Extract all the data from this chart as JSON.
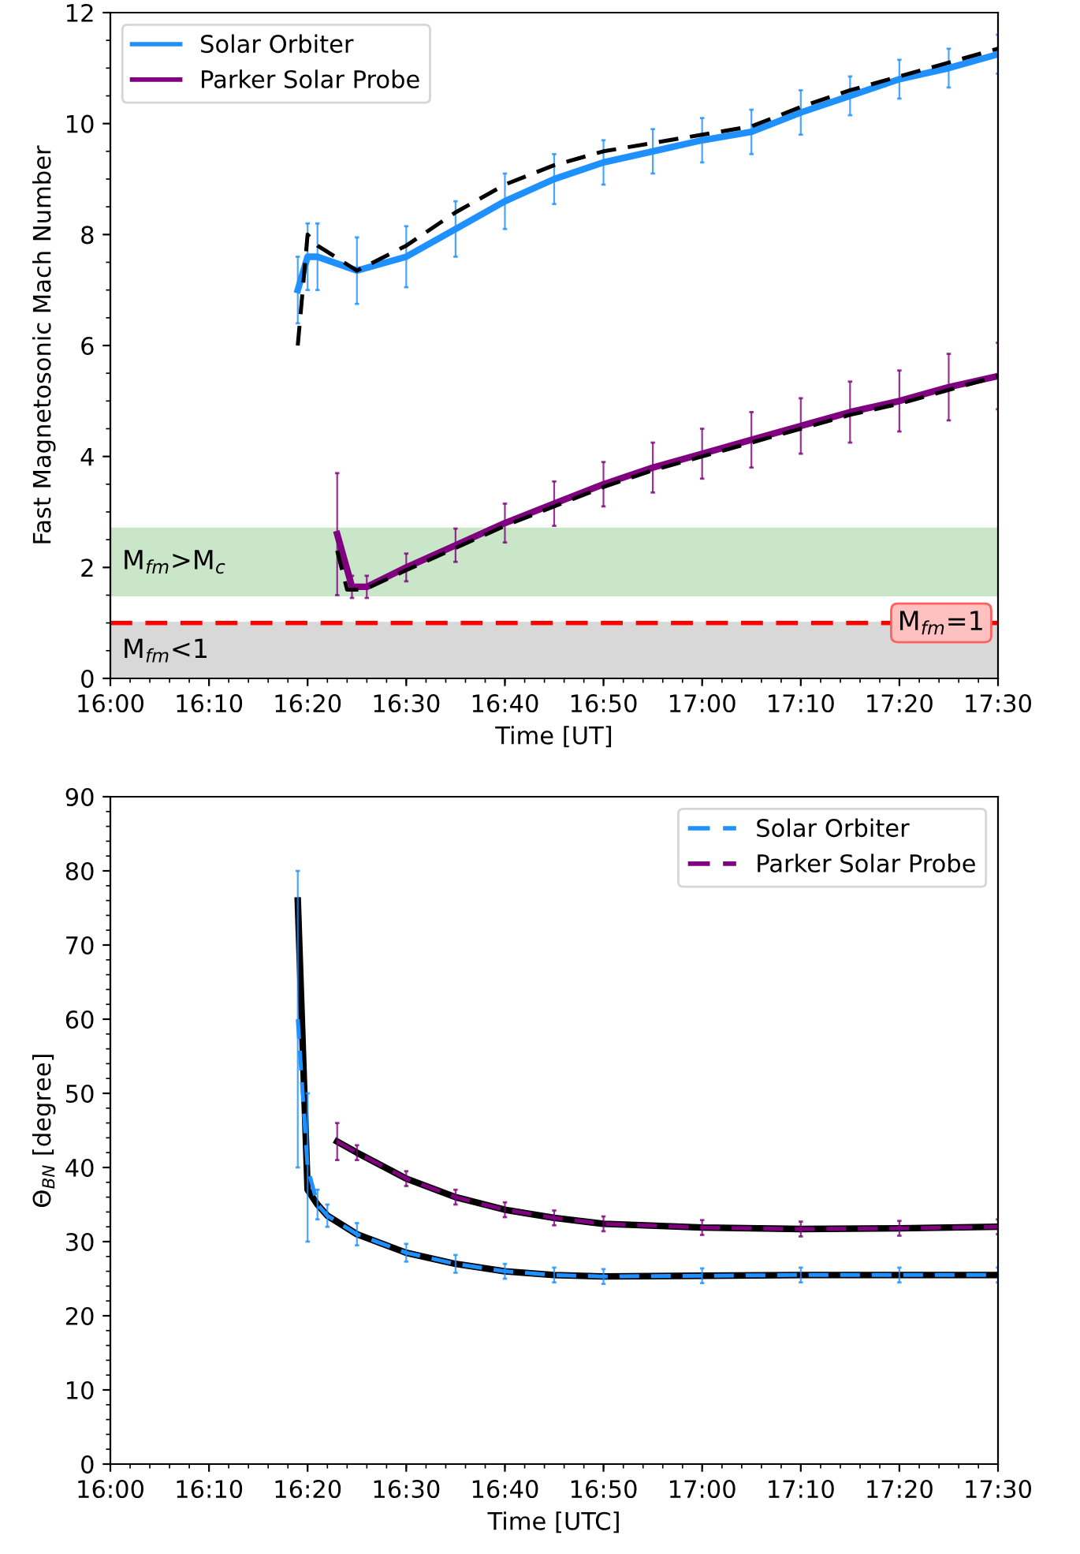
{
  "chart_data": [
    {
      "type": "line",
      "xlabel": "Time [UT]",
      "ylabel": "Fast Magnetosonic Mach Number",
      "xlim": [
        16.0,
        17.5
      ],
      "ylim": [
        0,
        12
      ],
      "xticks": [
        {
          "value": 16.0,
          "label": "16:00"
        },
        {
          "value": 16.1667,
          "label": "16:10"
        },
        {
          "value": 16.3333,
          "label": "16:20"
        },
        {
          "value": 16.5,
          "label": "16:30"
        },
        {
          "value": 16.6667,
          "label": "16:40"
        },
        {
          "value": 16.8333,
          "label": "16:50"
        },
        {
          "value": 17.0,
          "label": "17:00"
        },
        {
          "value": 17.1667,
          "label": "17:10"
        },
        {
          "value": 17.3333,
          "label": "17:20"
        },
        {
          "value": 17.5,
          "label": "17:30"
        }
      ],
      "yticks": [
        0,
        2,
        4,
        6,
        8,
        10,
        12
      ],
      "grid": false,
      "legend": "top left",
      "marker": "none",
      "series": [
        {
          "name": "Solar Orbiter",
          "color": "#1e90ff",
          "line_style": "solid",
          "x": [
            16.3167,
            16.3333,
            16.35,
            16.4167,
            16.5,
            16.5833,
            16.6667,
            16.75,
            16.8333,
            16.9167,
            17.0,
            17.0833,
            17.1667,
            17.25,
            17.3333,
            17.4167,
            17.5
          ],
          "values": [
            7.0,
            7.6,
            7.6,
            7.35,
            7.6,
            8.1,
            8.6,
            9.0,
            9.3,
            9.5,
            9.7,
            9.85,
            10.2,
            10.5,
            10.8,
            11.0,
            11.25
          ],
          "errors": [
            0.6,
            0.6,
            0.6,
            0.6,
            0.55,
            0.5,
            0.5,
            0.45,
            0.4,
            0.4,
            0.4,
            0.4,
            0.4,
            0.35,
            0.35,
            0.35,
            0.35
          ]
        },
        {
          "color": "#000000",
          "line_style": "dashed",
          "x": [
            16.3167,
            16.3333,
            16.35,
            16.4167,
            16.5,
            16.5833,
            16.6667,
            16.75,
            16.8333,
            16.9167,
            17.0,
            17.0833,
            17.1667,
            17.25,
            17.3333,
            17.4167,
            17.5
          ],
          "values": [
            6.0,
            8.0,
            7.8,
            7.35,
            7.8,
            8.4,
            8.9,
            9.25,
            9.5,
            9.65,
            9.8,
            9.95,
            10.3,
            10.6,
            10.85,
            11.1,
            11.35
          ]
        },
        {
          "name": "Parker Solar Probe",
          "color": "#800080",
          "line_style": "solid",
          "x": [
            16.3833,
            16.4083,
            16.4333,
            16.5,
            16.5833,
            16.6667,
            16.75,
            16.8333,
            16.9167,
            17.0,
            17.0833,
            17.1667,
            17.25,
            17.3333,
            17.4167,
            17.5
          ],
          "values": [
            2.6,
            1.65,
            1.65,
            2.0,
            2.4,
            2.8,
            3.15,
            3.5,
            3.8,
            4.05,
            4.3,
            4.55,
            4.8,
            5.0,
            5.25,
            5.45
          ],
          "errors": [
            1.1,
            0.2,
            0.2,
            0.25,
            0.3,
            0.35,
            0.4,
            0.4,
            0.45,
            0.45,
            0.5,
            0.5,
            0.55,
            0.55,
            0.6,
            0.6
          ]
        },
        {
          "color": "#000000",
          "line_style": "dashed",
          "x": [
            16.3833,
            16.4,
            16.4167,
            16.4333,
            16.5,
            16.5833,
            16.6667,
            16.75,
            16.8333,
            16.9167,
            17.0,
            17.0833,
            17.1667,
            17.25,
            17.3333,
            17.4167,
            17.5
          ],
          "values": [
            2.3,
            1.6,
            1.6,
            1.62,
            1.95,
            2.35,
            2.75,
            3.1,
            3.45,
            3.75,
            4.0,
            4.25,
            4.5,
            4.75,
            4.95,
            5.2,
            5.45
          ]
        }
      ],
      "bands": [
        {
          "axis": "y",
          "from": 1.5,
          "to": 2.7,
          "label": "M$_{fm}$>M$_{c}$",
          "color": "#2ca02c"
        },
        {
          "axis": "y",
          "from": 0,
          "to": 1,
          "label": "M$_{fm}$<1",
          "color": "#808080"
        }
      ],
      "ref_lines": [
        {
          "axis": "y",
          "value": 1,
          "label": "M$_{fm}$=1",
          "color": "#ff0000",
          "line_style": "dashed"
        }
      ]
    },
    {
      "type": "line",
      "xlabel": "Time [UTC]",
      "ylabel": "Θ$_{BN}$ [degree]",
      "xlim": [
        16.0,
        17.5
      ],
      "ylim": [
        0,
        90
      ],
      "xticks": [
        {
          "value": 16.0,
          "label": "16:00"
        },
        {
          "value": 16.1667,
          "label": "16:10"
        },
        {
          "value": 16.3333,
          "label": "16:20"
        },
        {
          "value": 16.5,
          "label": "16:30"
        },
        {
          "value": 16.6667,
          "label": "16:40"
        },
        {
          "value": 16.8333,
          "label": "16:50"
        },
        {
          "value": 17.0,
          "label": "17:00"
        },
        {
          "value": 17.1667,
          "label": "17:10"
        },
        {
          "value": 17.3333,
          "label": "17:20"
        },
        {
          "value": 17.5,
          "label": "17:30"
        }
      ],
      "yticks": [
        0,
        10,
        20,
        30,
        40,
        50,
        60,
        70,
        80,
        90
      ],
      "grid": false,
      "legend": "top right",
      "marker": "none",
      "series": [
        {
          "color": "#000000",
          "line_style": "solid",
          "x": [
            16.3167,
            16.3333,
            16.35,
            16.3667,
            16.4167,
            16.5,
            16.5833,
            16.6667,
            16.75,
            16.8333,
            17.0,
            17.1667,
            17.3333,
            17.5
          ],
          "values": [
            76,
            37,
            35,
            33.5,
            31,
            28.5,
            27,
            26,
            25.5,
            25.3,
            25.4,
            25.5,
            25.5,
            25.5
          ]
        },
        {
          "name": "Solar Orbiter",
          "color": "#1e90ff",
          "line_style": "dashed",
          "x": [
            16.3167,
            16.3333,
            16.35,
            16.3667,
            16.4167,
            16.5,
            16.5833,
            16.6667,
            16.75,
            16.8333,
            17.0,
            17.1667,
            17.3333,
            17.5
          ],
          "values": [
            60,
            40,
            35,
            33.5,
            31,
            28.5,
            27,
            26,
            25.5,
            25.3,
            25.4,
            25.5,
            25.5,
            25.5
          ],
          "errors": [
            20,
            10,
            2,
            1.5,
            1.5,
            1.2,
            1.2,
            1,
            1,
            1,
            1,
            1,
            1,
            1
          ]
        },
        {
          "color": "#000000",
          "line_style": "solid",
          "x": [
            16.3833,
            16.4167,
            16.5,
            16.5833,
            16.6667,
            16.75,
            16.8333,
            17.0,
            17.1667,
            17.3333,
            17.5
          ],
          "values": [
            43.5,
            42,
            38.5,
            36,
            34.3,
            33.2,
            32.4,
            31.9,
            31.7,
            31.8,
            32
          ]
        },
        {
          "name": "Parker Solar Probe",
          "color": "#800080",
          "line_style": "dashed",
          "x": [
            16.3833,
            16.4167,
            16.5,
            16.5833,
            16.6667,
            16.75,
            16.8333,
            17.0,
            17.1667,
            17.3333,
            17.5
          ],
          "values": [
            43.5,
            42,
            38.5,
            36,
            34.3,
            33.2,
            32.4,
            31.9,
            31.7,
            31.8,
            32
          ],
          "errors": [
            2.5,
            1,
            1,
            1,
            1,
            1,
            1,
            1,
            1,
            1,
            1
          ]
        }
      ]
    }
  ]
}
